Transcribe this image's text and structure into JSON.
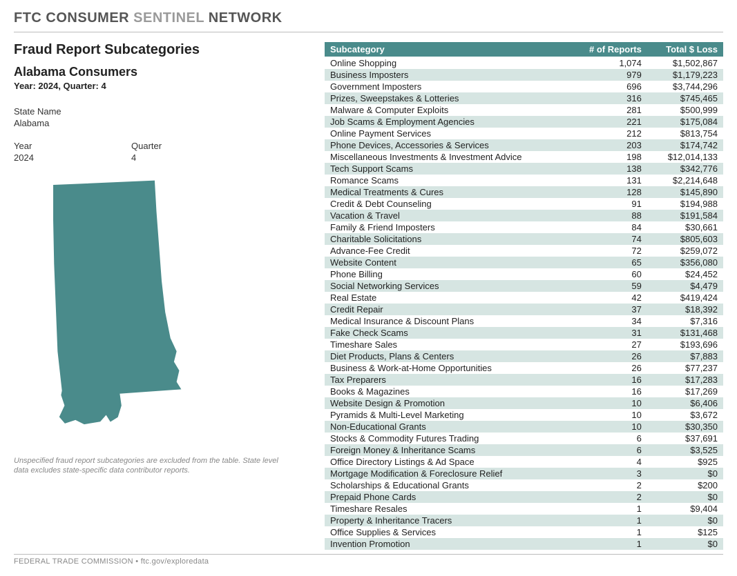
{
  "header": {
    "part1": "FTC CONSUMER",
    "part2": "SENTINEL",
    "part3": "NETWORK"
  },
  "left": {
    "title": "Fraud Report Subcategories",
    "subtitle": "Alabama Consumers",
    "period": "Year: 2024, Quarter: 4",
    "state_label": "State Name",
    "state_value": "Alabama",
    "year_label": "Year",
    "year_value": "2024",
    "quarter_label": "Quarter",
    "quarter_value": "4",
    "map_fill": "#4a8b8b",
    "footnote": "Unspecified fraud report subcategories are excluded from the table. State level data excludes state-specific data contributor reports."
  },
  "footer": "FEDERAL TRADE COMMISSION • ftc.gov/exploredata",
  "table": {
    "columns": [
      "Subcategory",
      "# of Reports",
      "Total $ Loss"
    ],
    "header_bg": "#4a8b8b",
    "stripe_bg": "#d6e5e2",
    "rows": [
      {
        "sub": "Online Shopping",
        "reports": "1,074",
        "loss": "$1,502,867"
      },
      {
        "sub": "Business Imposters",
        "reports": "979",
        "loss": "$1,179,223"
      },
      {
        "sub": "Government Imposters",
        "reports": "696",
        "loss": "$3,744,296"
      },
      {
        "sub": "Prizes, Sweepstakes & Lotteries",
        "reports": "316",
        "loss": "$745,465"
      },
      {
        "sub": "Malware & Computer Exploits",
        "reports": "281",
        "loss": "$500,999"
      },
      {
        "sub": "Job Scams & Employment Agencies",
        "reports": "221",
        "loss": "$175,084"
      },
      {
        "sub": "Online Payment Services",
        "reports": "212",
        "loss": "$813,754"
      },
      {
        "sub": "Phone Devices, Accessories & Services",
        "reports": "203",
        "loss": "$174,742"
      },
      {
        "sub": "Miscellaneous Investments & Investment Advice",
        "reports": "198",
        "loss": "$12,014,133"
      },
      {
        "sub": "Tech Support Scams",
        "reports": "138",
        "loss": "$342,776"
      },
      {
        "sub": "Romance Scams",
        "reports": "131",
        "loss": "$2,214,648"
      },
      {
        "sub": "Medical Treatments & Cures",
        "reports": "128",
        "loss": "$145,890"
      },
      {
        "sub": "Credit & Debt Counseling",
        "reports": "91",
        "loss": "$194,988"
      },
      {
        "sub": "Vacation & Travel",
        "reports": "88",
        "loss": "$191,584"
      },
      {
        "sub": "Family & Friend Imposters",
        "reports": "84",
        "loss": "$30,661"
      },
      {
        "sub": "Charitable Solicitations",
        "reports": "74",
        "loss": "$805,603"
      },
      {
        "sub": "Advance-Fee Credit",
        "reports": "72",
        "loss": "$259,072"
      },
      {
        "sub": "Website Content",
        "reports": "65",
        "loss": "$356,080"
      },
      {
        "sub": "Phone Billing",
        "reports": "60",
        "loss": "$24,452"
      },
      {
        "sub": "Social Networking Services",
        "reports": "59",
        "loss": "$4,479"
      },
      {
        "sub": "Real Estate",
        "reports": "42",
        "loss": "$419,424"
      },
      {
        "sub": "Credit Repair",
        "reports": "37",
        "loss": "$18,392"
      },
      {
        "sub": "Medical Insurance & Discount Plans",
        "reports": "34",
        "loss": "$7,316"
      },
      {
        "sub": "Fake Check Scams",
        "reports": "31",
        "loss": "$131,468"
      },
      {
        "sub": "Timeshare Sales",
        "reports": "27",
        "loss": "$193,696"
      },
      {
        "sub": "Diet Products, Plans & Centers",
        "reports": "26",
        "loss": "$7,883"
      },
      {
        "sub": "Business & Work-at-Home Opportunities",
        "reports": "26",
        "loss": "$77,237"
      },
      {
        "sub": "Tax Preparers",
        "reports": "16",
        "loss": "$17,283"
      },
      {
        "sub": "Books & Magazines",
        "reports": "16",
        "loss": "$17,269"
      },
      {
        "sub": "Website Design & Promotion",
        "reports": "10",
        "loss": "$6,406"
      },
      {
        "sub": "Pyramids & Multi-Level Marketing",
        "reports": "10",
        "loss": "$3,672"
      },
      {
        "sub": "Non-Educational Grants",
        "reports": "10",
        "loss": "$30,350"
      },
      {
        "sub": "Stocks & Commodity Futures Trading",
        "reports": "6",
        "loss": "$37,691"
      },
      {
        "sub": "Foreign Money & Inheritance Scams",
        "reports": "6",
        "loss": "$3,525"
      },
      {
        "sub": "Office Directory Listings & Ad Space",
        "reports": "4",
        "loss": "$925"
      },
      {
        "sub": "Mortgage Modification & Foreclosure Relief",
        "reports": "3",
        "loss": "$0"
      },
      {
        "sub": "Scholarships & Educational Grants",
        "reports": "2",
        "loss": "$200"
      },
      {
        "sub": "Prepaid Phone Cards",
        "reports": "2",
        "loss": "$0"
      },
      {
        "sub": "Timeshare Resales",
        "reports": "1",
        "loss": "$9,404"
      },
      {
        "sub": "Property & Inheritance Tracers",
        "reports": "1",
        "loss": "$0"
      },
      {
        "sub": "Office Supplies & Services",
        "reports": "1",
        "loss": "$125"
      },
      {
        "sub": "Invention Promotion",
        "reports": "1",
        "loss": "$0"
      }
    ]
  }
}
